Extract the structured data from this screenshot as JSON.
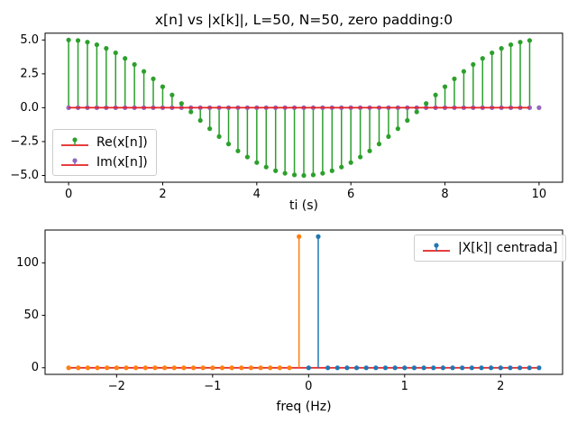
{
  "figure": {
    "title": "x[n] vs |x[k]|, L=50, N=50, zero padding:0",
    "background": "#ffffff"
  },
  "colors": {
    "re_stem": "#2ca02c",
    "im_marker": "#9467bd",
    "baseline": "#e32222",
    "pos_freq_series": "#1f77b4",
    "neg_freq_series": "#ff7f0e",
    "spine": "#000000"
  },
  "chart_data": [
    {
      "type": "stem",
      "title": "x[n] vs |x[k]|, L=50, N=50, zero padding:0",
      "xlabel": "ti (s)",
      "ylabel": "",
      "grid": false,
      "legend_position": "lower left",
      "legend": [
        "Re(x[n])",
        "Im(x[n])"
      ],
      "xlim": [
        -0.5,
        10.5
      ],
      "ylim": [
        -5.5,
        5.5
      ],
      "xticks": [
        {
          "v": 0,
          "label": "0"
        },
        {
          "v": 2,
          "label": "2"
        },
        {
          "v": 4,
          "label": "4"
        },
        {
          "v": 6,
          "label": "6"
        },
        {
          "v": 8,
          "label": "8"
        },
        {
          "v": 10,
          "label": "10"
        }
      ],
      "yticks": [
        {
          "v": 5,
          "label": "5.0"
        },
        {
          "v": 2.5,
          "label": "2.5"
        },
        {
          "v": 0,
          "label": "0.0"
        },
        {
          "v": -2.5,
          "label": "−2.5"
        },
        {
          "v": -5,
          "label": "−5.0"
        }
      ],
      "baseline": {
        "y": 0,
        "x_from": 0,
        "x_to": 9.8
      },
      "series": [
        {
          "name": "Re(x[n])",
          "color_key": "re_stem",
          "style": "stem",
          "x_start": 0,
          "x_step": 0.2,
          "count": 50,
          "y": [
            5.0,
            4.96,
            4.84,
            4.65,
            4.38,
            4.05,
            3.64,
            3.19,
            2.68,
            2.13,
            1.55,
            0.94,
            0.31,
            -0.31,
            -0.94,
            -1.55,
            -2.13,
            -2.68,
            -3.19,
            -3.64,
            -4.05,
            -4.38,
            -4.65,
            -4.84,
            -4.96,
            -5.0,
            -4.96,
            -4.84,
            -4.65,
            -4.38,
            -4.05,
            -3.64,
            -3.19,
            -2.68,
            -2.13,
            -1.55,
            -0.94,
            -0.31,
            0.31,
            0.94,
            1.55,
            2.13,
            2.68,
            3.19,
            3.64,
            4.05,
            4.38,
            4.65,
            4.84,
            4.96
          ],
          "note": "5*cos(2*pi*0.1*t), t = 0..9.8 s step 0.2"
        },
        {
          "name": "Im(x[n])",
          "color_key": "im_marker",
          "style": "markers",
          "x_start": 0,
          "x_step": 0.2,
          "count": 51,
          "y_const": 0,
          "note": "all zeros, t = 0..10 s step 0.2"
        }
      ]
    },
    {
      "type": "stem",
      "title": "",
      "xlabel": "freq (Hz)",
      "ylabel": "",
      "grid": false,
      "legend_position": "upper right",
      "legend": [
        "|X[k]| centrada]"
      ],
      "xlim": [
        -2.745,
        2.645
      ],
      "ylim": [
        -6.25,
        131.25
      ],
      "xticks": [
        {
          "v": -2,
          "label": "−2"
        },
        {
          "v": -1,
          "label": "−1"
        },
        {
          "v": 0,
          "label": "0"
        },
        {
          "v": 1,
          "label": "1"
        },
        {
          "v": 2,
          "label": "2"
        }
      ],
      "yticks": [
        {
          "v": 0,
          "label": "0"
        },
        {
          "v": 50,
          "label": "50"
        },
        {
          "v": 100,
          "label": "100"
        }
      ],
      "baseline": {
        "y": 0,
        "x_from": -2.5,
        "x_to": 2.4
      },
      "series": [
        {
          "name": "|X[k]| centrada] (positive frequencies)",
          "color_key": "pos_freq_series",
          "style": "stem",
          "x_start": 0,
          "x_step": 0.1,
          "count": 25,
          "y": [
            0,
            125,
            0,
            0,
            0,
            0,
            0,
            0,
            0,
            0,
            0,
            0,
            0,
            0,
            0,
            0,
            0,
            0,
            0,
            0,
            0,
            0,
            0,
            0,
            0
          ],
          "note": "spike |X[k]|=125 at +0.1 Hz"
        },
        {
          "name": "|X[k]| centrada] (negative frequencies)",
          "color_key": "neg_freq_series",
          "style": "stem",
          "x_start": -2.5,
          "x_step": 0.1,
          "count": 25,
          "y": [
            0,
            0,
            0,
            0,
            0,
            0,
            0,
            0,
            0,
            0,
            0,
            0,
            0,
            0,
            0,
            0,
            0,
            0,
            0,
            0,
            0,
            0,
            0,
            0,
            125
          ],
          "note": "spike |X[k]|=125 at -0.1 Hz"
        }
      ]
    }
  ]
}
